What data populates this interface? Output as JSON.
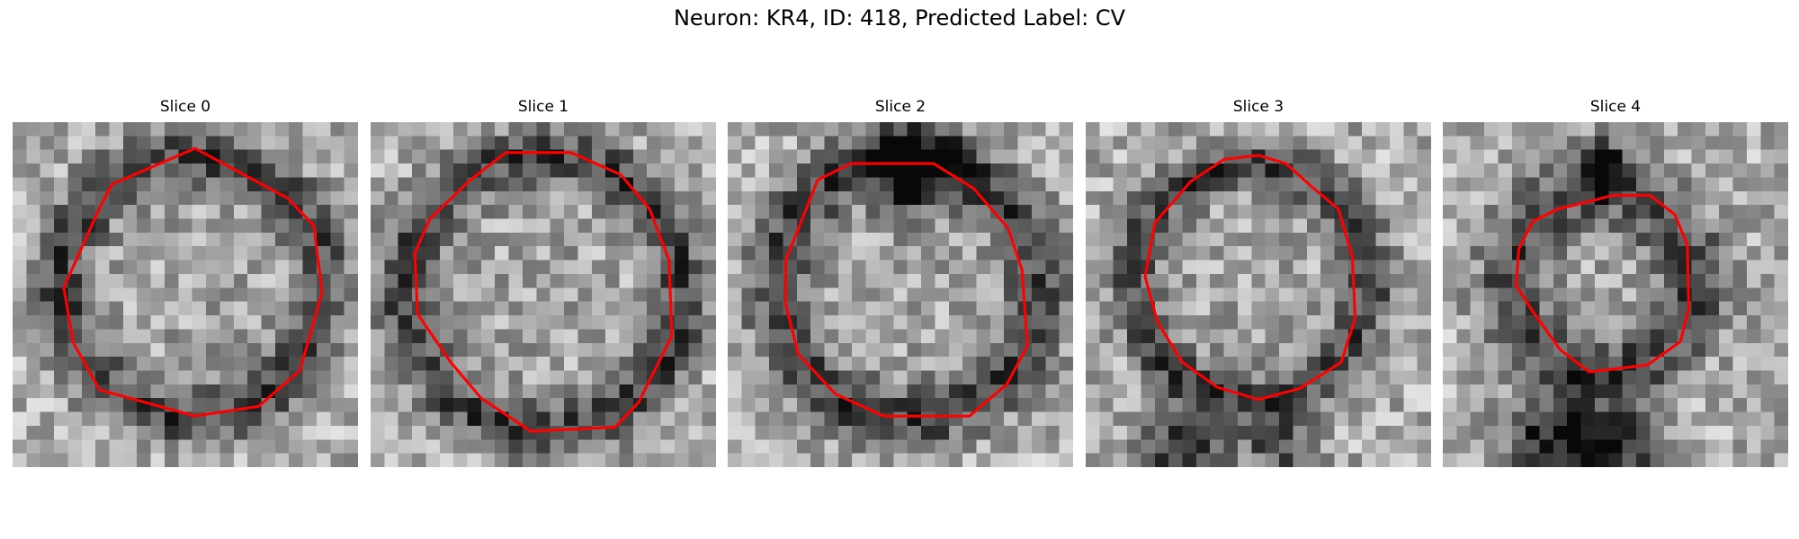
{
  "title": "Neuron: KR4, ID: 418, Predicted Label: CV",
  "outline_color": "#ff0000",
  "panels": [
    {
      "label": "Slice 0",
      "contour": [
        [
          7.2,
          4.5
        ],
        [
          13.2,
          1.9
        ],
        [
          19.9,
          5.5
        ],
        [
          21.8,
          7.5
        ],
        [
          22.4,
          12.3
        ],
        [
          20.8,
          18.0
        ],
        [
          17.8,
          20.6
        ],
        [
          13.2,
          21.3
        ],
        [
          6.3,
          19.4
        ],
        [
          4.4,
          16.0
        ],
        [
          3.7,
          12.0
        ],
        [
          6.3,
          6.2
        ]
      ]
    },
    {
      "label": "Slice 1",
      "contour": [
        [
          7.2,
          4.2
        ],
        [
          9.8,
          2.2
        ],
        [
          14.5,
          2.2
        ],
        [
          18.1,
          3.8
        ],
        [
          20.2,
          6.3
        ],
        [
          21.6,
          10.0
        ],
        [
          21.8,
          15.5
        ],
        [
          19.4,
          20.3
        ],
        [
          17.7,
          22.1
        ],
        [
          11.6,
          22.4
        ],
        [
          8.0,
          20.0
        ],
        [
          5.8,
          17.4
        ],
        [
          3.4,
          13.9
        ],
        [
          3.2,
          9.5
        ],
        [
          4.3,
          7.0
        ]
      ]
    },
    {
      "label": "Slice 2",
      "contour": [
        [
          6.5,
          4.2
        ],
        [
          8.9,
          3.0
        ],
        [
          14.9,
          3.0
        ],
        [
          17.8,
          4.8
        ],
        [
          20.3,
          7.7
        ],
        [
          21.3,
          10.7
        ],
        [
          21.7,
          16.2
        ],
        [
          20.2,
          19.0
        ],
        [
          17.5,
          21.3
        ],
        [
          11.3,
          21.3
        ],
        [
          7.8,
          19.7
        ],
        [
          5.1,
          16.8
        ],
        [
          4.2,
          13.2
        ],
        [
          4.2,
          10.0
        ],
        [
          5.8,
          6.0
        ]
      ]
    },
    {
      "label": "Slice 3",
      "contour": [
        [
          10.0,
          2.7
        ],
        [
          12.5,
          2.4
        ],
        [
          14.5,
          3.0
        ],
        [
          16.5,
          4.8
        ],
        [
          18.3,
          6.3
        ],
        [
          19.3,
          9.8
        ],
        [
          19.5,
          14.2
        ],
        [
          18.5,
          17.4
        ],
        [
          15.5,
          19.3
        ],
        [
          12.5,
          20.1
        ],
        [
          9.5,
          19.2
        ],
        [
          7.0,
          17.4
        ],
        [
          5.2,
          14.5
        ],
        [
          4.3,
          11.2
        ],
        [
          5.0,
          7.3
        ],
        [
          7.6,
          4.3
        ]
      ]
    },
    {
      "label": "Slice 4",
      "contour": [
        [
          10.8,
          5.7
        ],
        [
          12.3,
          5.3
        ],
        [
          15.0,
          5.3
        ],
        [
          16.8,
          6.7
        ],
        [
          17.7,
          8.9
        ],
        [
          17.8,
          13.5
        ],
        [
          17.2,
          15.9
        ],
        [
          14.8,
          17.6
        ],
        [
          10.6,
          18.1
        ],
        [
          8.5,
          16.5
        ],
        [
          6.5,
          13.7
        ],
        [
          5.3,
          11.8
        ],
        [
          5.5,
          9.2
        ],
        [
          6.5,
          7.2
        ],
        [
          8.3,
          6.3
        ]
      ]
    }
  ]
}
